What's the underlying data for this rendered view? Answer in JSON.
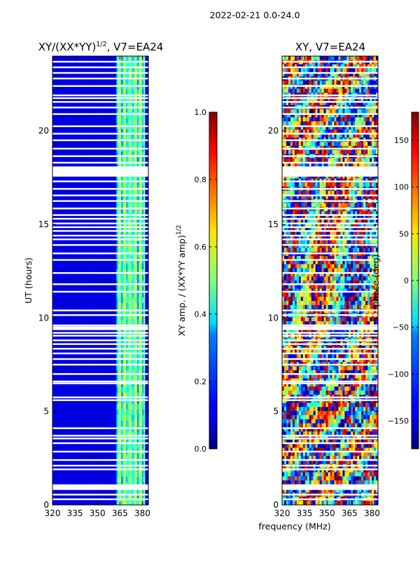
{
  "suptitle": "2022-02-21 0.0-24.0",
  "shared_xlabel": "frequency (MHz)",
  "chart_data": [
    {
      "type": "heatmap",
      "title_main": "XY/(XX*YY)",
      "title_exp": "1/2",
      "title_tail": ", V7=EA24",
      "ylabel": "UT (hours)",
      "xlim": [
        320,
        384
      ],
      "ylim": [
        0,
        24
      ],
      "xticks": [
        320,
        335,
        350,
        365,
        380
      ],
      "yticks": [
        0,
        5,
        10,
        15,
        20
      ],
      "colorbar": {
        "label_main": "XY amp. / (XX*YY amp)",
        "label_exp": "1/2",
        "range": [
          0.0,
          1.0
        ],
        "ticks": [
          "0.0",
          "0.2",
          "0.4",
          "0.6",
          "0.8",
          "1.0"
        ]
      },
      "description_values": {
        "background_level": 0.08,
        "bright_band_mhz": [
          363,
          382
        ],
        "band_peak_level": 0.55
      }
    },
    {
      "type": "heatmap",
      "title": "XY, V7=EA24",
      "colorbar_label": "phase (deg)",
      "xlim": [
        320,
        384
      ],
      "ylim": [
        0,
        24
      ],
      "xticks": [
        320,
        335,
        350,
        365,
        380
      ],
      "yticks": [
        0,
        5,
        10,
        15,
        20
      ],
      "colorbar": {
        "range": [
          -180,
          180
        ],
        "ticks": [
          "−150",
          "−100",
          "−50",
          "0",
          "50",
          "100",
          "150"
        ]
      }
    }
  ],
  "flagged_hours": [
    0.3,
    0.55,
    0.9,
    1.0,
    1.9,
    2.1,
    2.4,
    2.85,
    3.3,
    3.55,
    3.7,
    4.1,
    5.6,
    5.75,
    6.5,
    6.6,
    7.0,
    7.5,
    7.8,
    8.1,
    8.35,
    8.6,
    8.8,
    9.05,
    9.2,
    9.45,
    9.6,
    10.15,
    10.4,
    11.4,
    11.8,
    12.4,
    13.1,
    13.45,
    13.9,
    14.2,
    14.4,
    14.65,
    14.85,
    15.05,
    15.3,
    15.5,
    15.85,
    16.25,
    16.55,
    16.9,
    17.3,
    17.6,
    17.75,
    17.9,
    18.05,
    18.3,
    18.65,
    19.05,
    19.5,
    19.85,
    20.25,
    20.9,
    21.25,
    21.55,
    21.75,
    21.9,
    22.4,
    22.8,
    23.1,
    23.4,
    23.7
  ]
}
